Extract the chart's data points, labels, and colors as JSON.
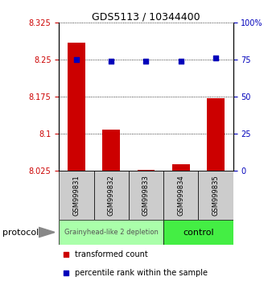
{
  "title": "GDS5113 / 10344400",
  "samples": [
    "GSM999831",
    "GSM999832",
    "GSM999833",
    "GSM999834",
    "GSM999835"
  ],
  "bar_values": [
    8.285,
    8.108,
    8.028,
    8.038,
    8.172
  ],
  "bar_baseline": 8.025,
  "percentile_values": [
    75,
    74,
    74,
    74,
    76
  ],
  "ylim_left": [
    8.025,
    8.325
  ],
  "ylim_right": [
    0,
    100
  ],
  "yticks_left": [
    8.025,
    8.1,
    8.175,
    8.25,
    8.325
  ],
  "yticks_right": [
    0,
    25,
    50,
    75,
    100
  ],
  "ytick_labels_left": [
    "8.025",
    "8.1",
    "8.175",
    "8.25",
    "8.325"
  ],
  "ytick_labels_right": [
    "0",
    "25",
    "50",
    "75",
    "100%"
  ],
  "bar_color": "#cc0000",
  "dot_color": "#0000bb",
  "groups": [
    {
      "label": "Grainyhead-like 2 depletion",
      "samples": [
        0,
        1,
        2
      ],
      "color": "#aaffaa",
      "text_color": "#555555",
      "fontsize": 6
    },
    {
      "label": "control",
      "samples": [
        3,
        4
      ],
      "color": "#44ee44",
      "text_color": "#000000",
      "fontsize": 8
    }
  ],
  "protocol_label": "protocol",
  "legend_bar_label": "transformed count",
  "legend_dot_label": "percentile rank within the sample",
  "sample_box_color": "#cccccc",
  "title_fontsize": 9,
  "tick_fontsize": 7
}
